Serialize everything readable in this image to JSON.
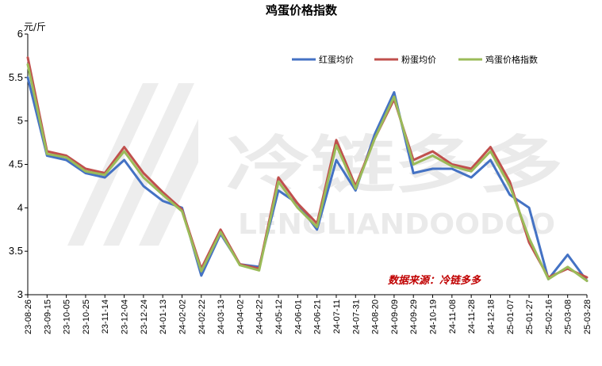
{
  "chart_data": {
    "type": "line",
    "title": "鸡蛋价格指数",
    "ylabel": "元/斤",
    "ylim": [
      3,
      6
    ],
    "yticks": [
      3,
      3.5,
      4,
      4.5,
      5,
      5.5,
      6
    ],
    "grid": false,
    "legend_position": "top-right",
    "source_note": "数据来源：冷链多多",
    "categories": [
      "23-08-26",
      "23-09-15",
      "23-10-05",
      "23-10-25",
      "23-11-14",
      "23-12-04",
      "23-12-24",
      "24-01-13",
      "24-02-02",
      "24-02-22",
      "24-03-13",
      "24-04-02",
      "24-04-22",
      "24-05-12",
      "24-06-01",
      "24-06-21",
      "24-07-11",
      "24-07-31",
      "24-08-20",
      "24-09-09",
      "24-09-29",
      "24-10-19",
      "24-11-08",
      "24-11-28",
      "24-12-18",
      "25-01-07",
      "25-01-27",
      "25-02-16",
      "25-03-08",
      "25-03-28"
    ],
    "series": [
      {
        "name": "红蛋均价",
        "color": "#4472c4",
        "values": [
          5.5,
          4.6,
          4.55,
          4.4,
          4.35,
          4.55,
          4.25,
          4.08,
          4.0,
          3.22,
          3.7,
          3.35,
          3.32,
          4.2,
          4.05,
          3.75,
          4.55,
          4.2,
          4.85,
          5.33,
          4.4,
          4.45,
          4.45,
          4.35,
          4.55,
          4.15,
          4.0,
          3.18,
          3.46,
          3.16
        ]
      },
      {
        "name": "粉蛋均价",
        "color": "#c0504d",
        "values": [
          5.73,
          4.65,
          4.6,
          4.45,
          4.4,
          4.7,
          4.4,
          4.18,
          3.98,
          3.3,
          3.75,
          3.35,
          3.3,
          4.35,
          4.05,
          3.82,
          4.78,
          4.25,
          4.8,
          5.25,
          4.55,
          4.65,
          4.5,
          4.45,
          4.7,
          4.3,
          3.6,
          3.2,
          3.3,
          3.2
        ]
      },
      {
        "name": "鸡蛋价格指数",
        "color": "#9bbb59",
        "values": [
          5.65,
          4.62,
          4.58,
          4.42,
          4.38,
          4.65,
          4.35,
          4.15,
          3.96,
          3.27,
          3.72,
          3.34,
          3.28,
          4.3,
          4.0,
          3.78,
          4.72,
          4.22,
          4.8,
          5.28,
          4.5,
          4.6,
          4.48,
          4.42,
          4.65,
          4.25,
          3.65,
          3.18,
          3.32,
          3.16
        ]
      }
    ]
  },
  "watermark": {
    "brand": "冷链多多",
    "latin": "LENGLIANDOODOO"
  }
}
